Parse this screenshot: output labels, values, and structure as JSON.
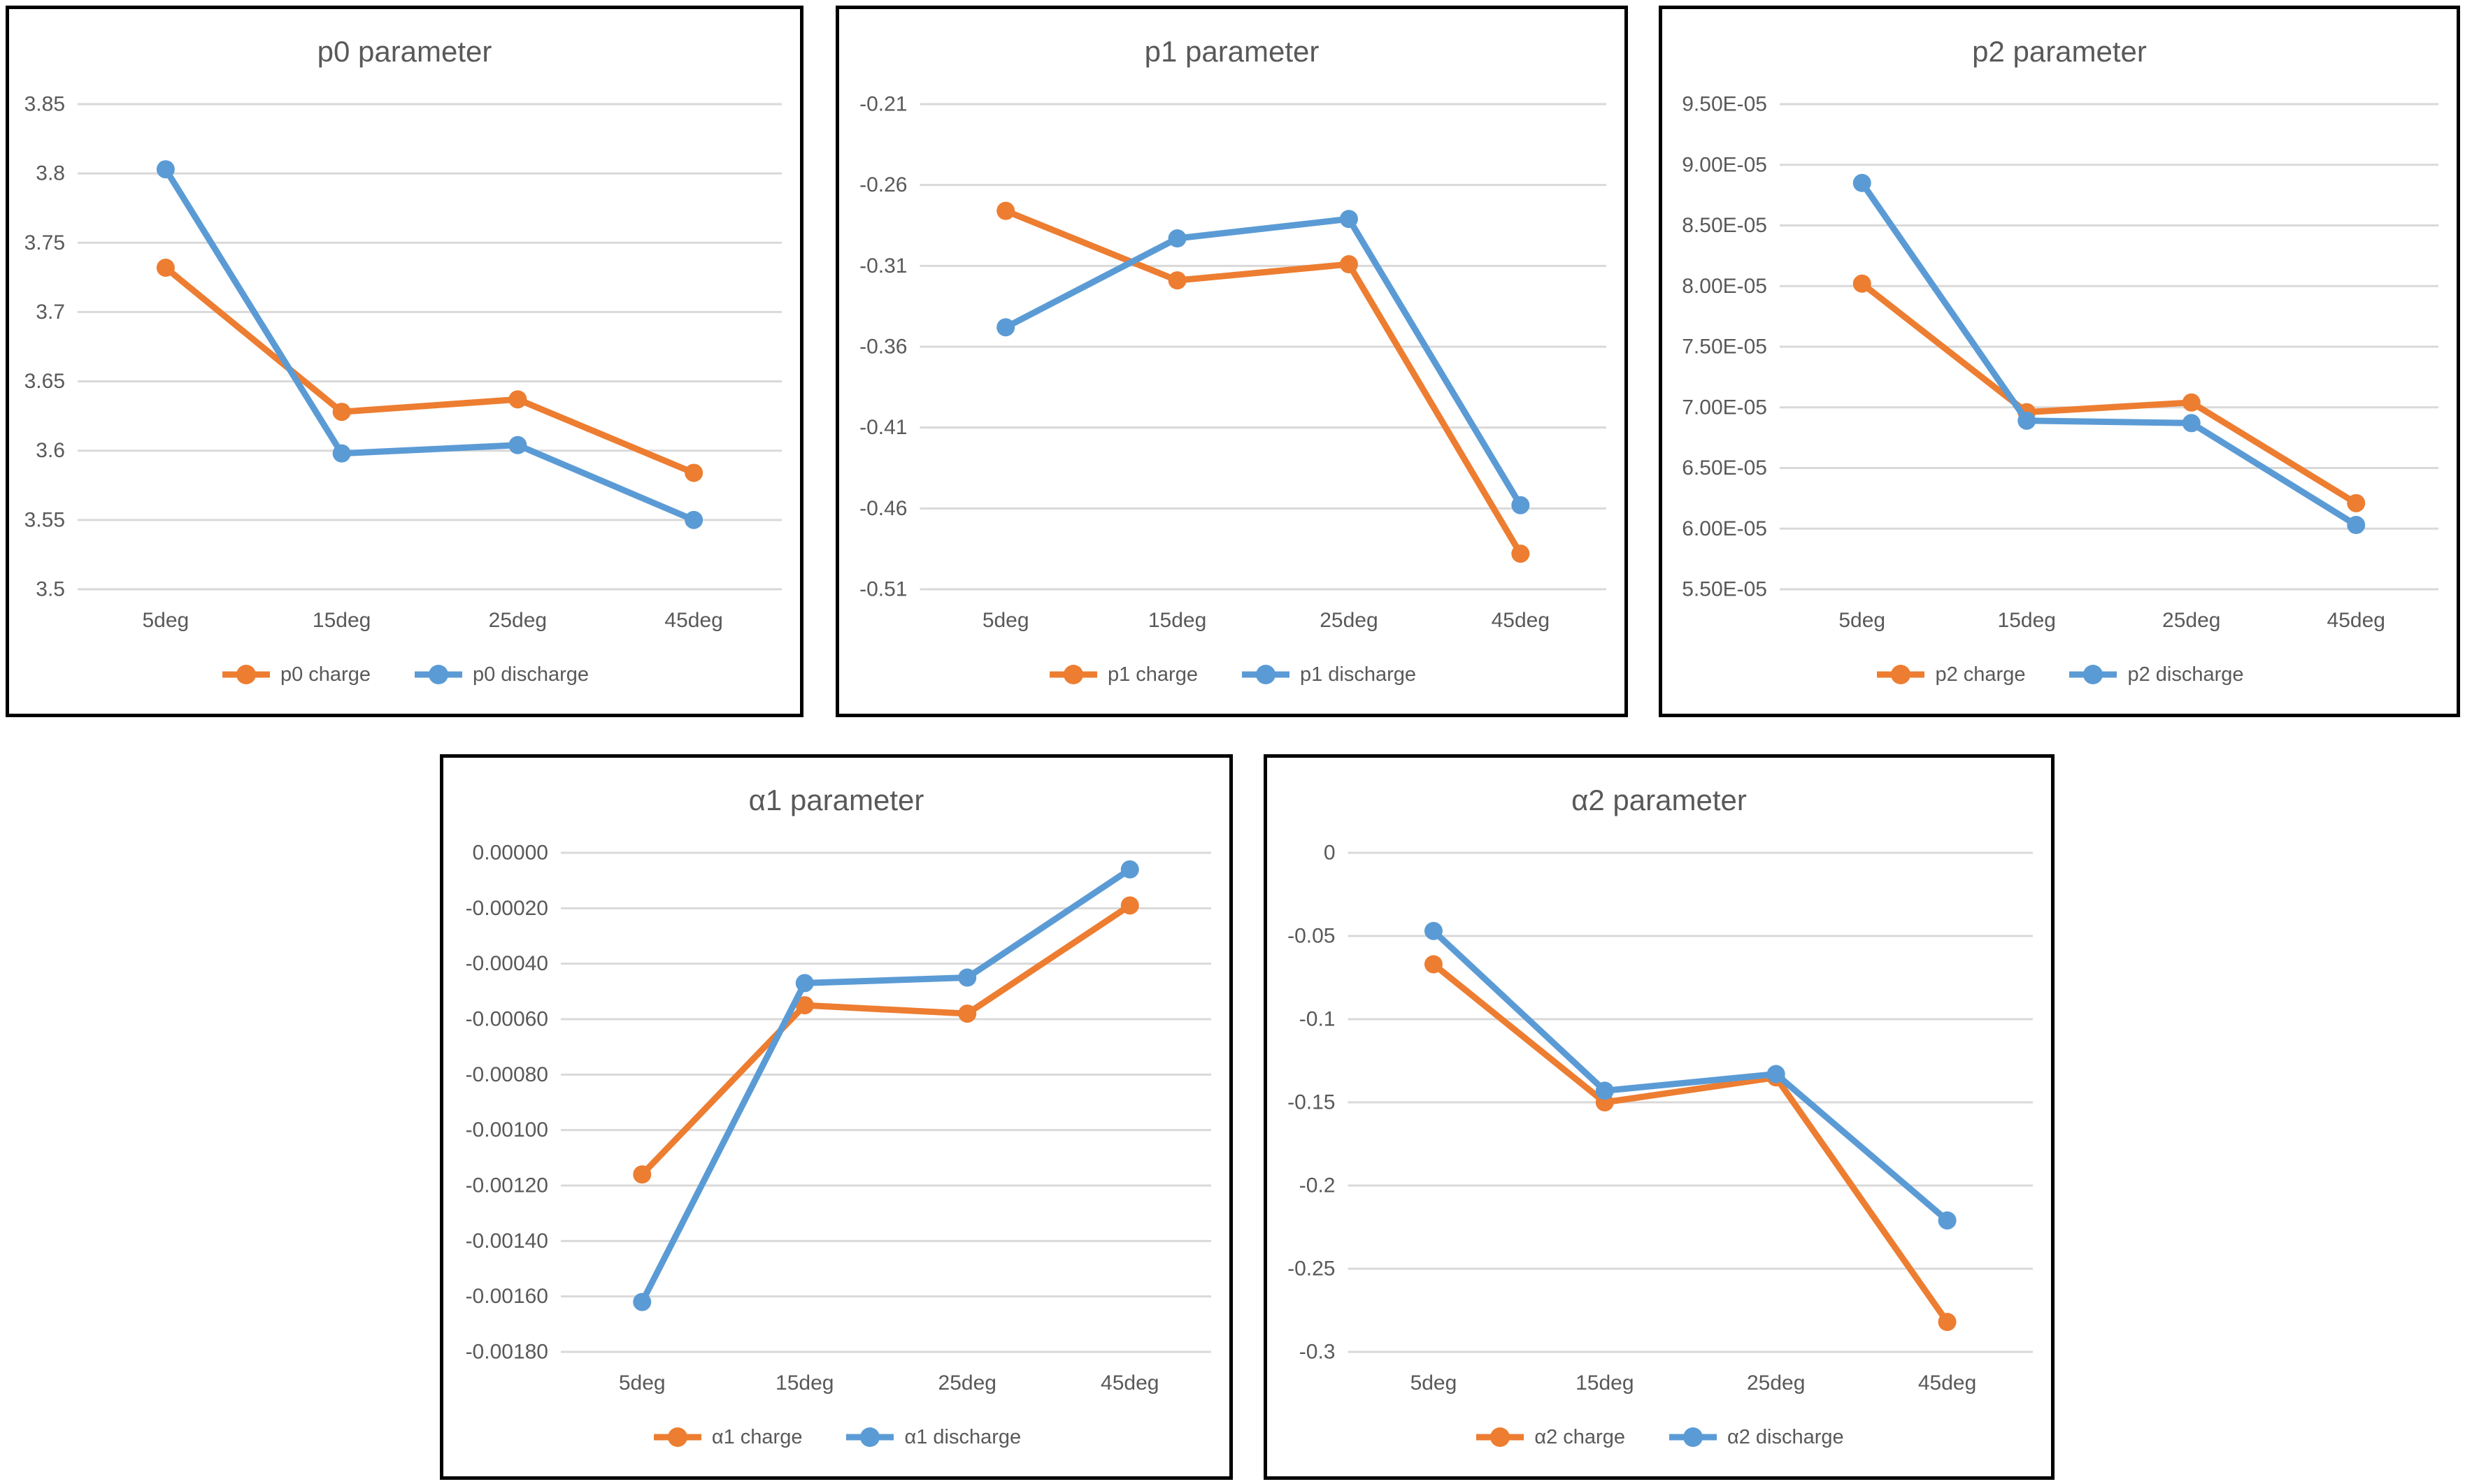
{
  "colors": {
    "charge": "#ED7D31",
    "discharge": "#5B9BD5",
    "gridline": "#D9D9D9",
    "axis_text": "#595959",
    "title_text": "#595959",
    "panel_border": "#000000"
  },
  "chart_data": [
    {
      "type": "line",
      "title": "p0 parameter",
      "xlabel": "",
      "ylabel": "",
      "grid": true,
      "legend_position": "bottom",
      "categories": [
        "5deg",
        "15deg",
        "25deg",
        "45deg"
      ],
      "ylim": [
        3.5,
        3.85
      ],
      "ytick_values": [
        3.5,
        3.55,
        3.6,
        3.65,
        3.7,
        3.75,
        3.8,
        3.85
      ],
      "ytick_labels": [
        "3.5",
        "3.55",
        "3.6",
        "3.65",
        "3.7",
        "3.75",
        "3.8",
        "3.85"
      ],
      "series": [
        {
          "name": "p0 charge",
          "color": "#ED7D31",
          "values": [
            3.732,
            3.628,
            3.637,
            3.584
          ]
        },
        {
          "name": "p0 discharge",
          "color": "#5B9BD5",
          "values": [
            3.803,
            3.598,
            3.604,
            3.55
          ]
        }
      ]
    },
    {
      "type": "line",
      "title": "p1 parameter",
      "xlabel": "",
      "ylabel": "",
      "grid": true,
      "legend_position": "bottom",
      "categories": [
        "5deg",
        "15deg",
        "25deg",
        "45deg"
      ],
      "ylim": [
        -0.51,
        -0.21
      ],
      "ytick_values": [
        -0.51,
        -0.46,
        -0.41,
        -0.36,
        -0.31,
        -0.26,
        -0.21
      ],
      "ytick_labels": [
        "-0.51",
        "-0.46",
        "-0.41",
        "-0.36",
        "-0.31",
        "-0.26",
        "-0.21"
      ],
      "series": [
        {
          "name": "p1 charge",
          "color": "#ED7D31",
          "values": [
            -0.276,
            -0.319,
            -0.309,
            -0.488
          ]
        },
        {
          "name": "p1 discharge",
          "color": "#5B9BD5",
          "values": [
            -0.348,
            -0.293,
            -0.281,
            -0.458
          ]
        }
      ]
    },
    {
      "type": "line",
      "title": "p2 parameter",
      "xlabel": "",
      "ylabel": "",
      "grid": true,
      "legend_position": "bottom",
      "categories": [
        "5deg",
        "15deg",
        "25deg",
        "45deg"
      ],
      "ylim": [
        5.5e-05,
        9.5e-05
      ],
      "ytick_values": [
        5.5e-05,
        6e-05,
        6.5e-05,
        7e-05,
        7.5e-05,
        8e-05,
        8.5e-05,
        9e-05,
        9.5e-05
      ],
      "ytick_labels": [
        "5.50E-05",
        "6.00E-05",
        "6.50E-05",
        "7.00E-05",
        "7.50E-05",
        "8.00E-05",
        "8.50E-05",
        "9.00E-05",
        "9.50E-05"
      ],
      "series": [
        {
          "name": "p2 charge",
          "color": "#ED7D31",
          "values": [
            8.02e-05,
            6.96e-05,
            7.04e-05,
            6.21e-05
          ]
        },
        {
          "name": "p2 discharge",
          "color": "#5B9BD5",
          "values": [
            8.85e-05,
            6.89e-05,
            6.87e-05,
            6.03e-05
          ]
        }
      ]
    },
    {
      "type": "line",
      "title": "α1 parameter",
      "xlabel": "",
      "ylabel": "",
      "grid": true,
      "legend_position": "bottom",
      "categories": [
        "5deg",
        "15deg",
        "25deg",
        "45deg"
      ],
      "ylim": [
        -0.0018,
        0
      ],
      "ytick_values": [
        -0.0018,
        -0.0016,
        -0.0014,
        -0.0012,
        -0.001,
        -0.0008,
        -0.0006,
        -0.0004,
        -0.0002,
        0
      ],
      "ytick_labels": [
        "-0.00180",
        "-0.00160",
        "-0.00140",
        "-0.00120",
        "-0.00100",
        "-0.00080",
        "-0.00060",
        "-0.00040",
        "-0.00020",
        "0.00000"
      ],
      "series": [
        {
          "name": "α1 charge",
          "color": "#ED7D31",
          "values": [
            -0.00116,
            -0.00055,
            -0.00058,
            -0.00019
          ]
        },
        {
          "name": "α1 discharge",
          "color": "#5B9BD5",
          "values": [
            -0.00162,
            -0.00047,
            -0.00045,
            -6e-05
          ]
        }
      ]
    },
    {
      "type": "line",
      "title": "α2 parameter",
      "xlabel": "",
      "ylabel": "",
      "grid": true,
      "legend_position": "bottom",
      "categories": [
        "5deg",
        "15deg",
        "25deg",
        "45deg"
      ],
      "ylim": [
        -0.3,
        0
      ],
      "ytick_values": [
        -0.3,
        -0.25,
        -0.2,
        -0.15,
        -0.1,
        -0.05,
        0
      ],
      "ytick_labels": [
        "-0.3",
        "-0.25",
        "-0.2",
        "-0.15",
        "-0.1",
        "-0.05",
        "0"
      ],
      "series": [
        {
          "name": "α2 charge",
          "color": "#ED7D31",
          "values": [
            -0.067,
            -0.15,
            -0.135,
            -0.282
          ]
        },
        {
          "name": "α2 discharge",
          "color": "#5B9BD5",
          "values": [
            -0.047,
            -0.143,
            -0.133,
            -0.221
          ]
        }
      ]
    }
  ]
}
